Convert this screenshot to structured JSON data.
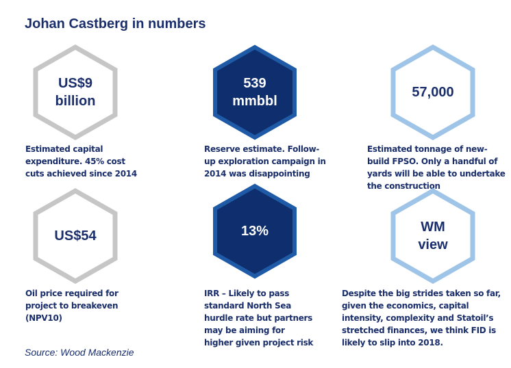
{
  "title": "Johan Castberg in numbers",
  "colors": {
    "navy": "#0f2e6e",
    "grey": "#c6c6c6",
    "lightblue": "#9ec4e8",
    "text": "#1a2e6b"
  },
  "cells": [
    {
      "style": "grey",
      "value_lines": [
        "US$9",
        "billion"
      ],
      "desc_lines": [
        "Estimated capital",
        "expenditure. 45% cost",
        "cuts achieved since 2014"
      ]
    },
    {
      "style": "navy",
      "value_lines": [
        "539",
        "mmbbl"
      ],
      "desc_lines": [
        "Reserve estimate. Follow-",
        "up exploration campaign in",
        "2014 was disappointing"
      ]
    },
    {
      "style": "lightblue",
      "value_lines": [
        "57,000"
      ],
      "desc_lines": [
        "Estimated tonnage of new-",
        "build FPSO. Only a handful of",
        "yards will be able to undertake",
        "the construction"
      ]
    },
    {
      "style": "grey",
      "value_lines": [
        "US$54"
      ],
      "desc_lines": [
        "Oil price required for",
        "project to breakeven",
        "(NPV10)"
      ]
    },
    {
      "style": "navy",
      "value_lines": [
        "13%"
      ],
      "desc_lines": [
        "IRR – Likely to pass",
        "standard North Sea",
        "hurdle rate but partners",
        "may be aiming for",
        "higher given project risk"
      ]
    },
    {
      "style": "lightblue",
      "value_lines": [
        "WM",
        "view"
      ],
      "desc_lines": [
        "Despite the big strides taken so far,",
        "given the economics, capital",
        "intensity, complexity and Statoil’s",
        "stretched finances, we think FID is",
        "likely to slip into 2018."
      ]
    }
  ],
  "source": "Source: Wood Mackenzie"
}
